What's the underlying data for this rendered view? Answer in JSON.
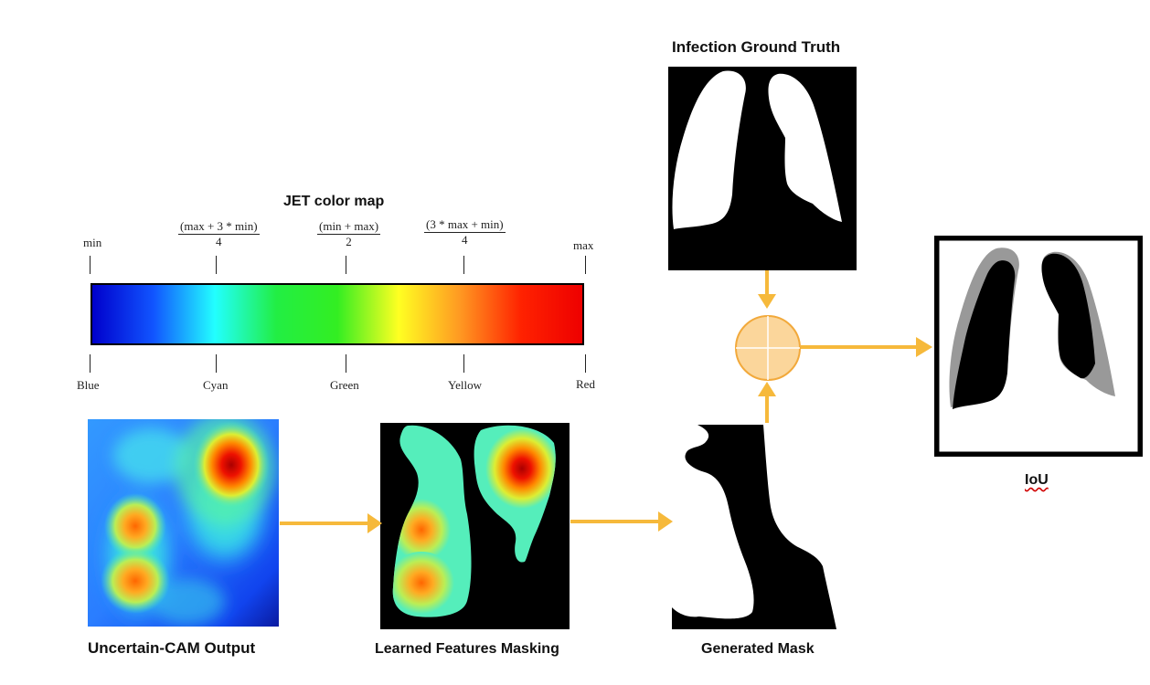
{
  "labels": {
    "ground_truth": "Infection Ground Truth",
    "iou": "IoU",
    "uncertain_cam": "Uncertain-CAM Output",
    "learned_masking": "Learned Features Masking",
    "generated_mask": "Generated Mask"
  },
  "colormap": {
    "title": "JET color map",
    "top_ticks": [
      {
        "text": "min"
      },
      {
        "num": "(max + 3 * min)",
        "den": "4"
      },
      {
        "num": "(min + max)",
        "den": "2"
      },
      {
        "num": "(3 * max + min)",
        "den": "4"
      },
      {
        "text": "max"
      }
    ],
    "bottom_labels": [
      "Blue",
      "Cyan",
      "Green",
      "Yellow",
      "Red"
    ],
    "colors": [
      "#0000cc",
      "#1155ff",
      "#22ffff",
      "#22ee44",
      "#33ee22",
      "#ffff22",
      "#ff9922",
      "#ff2200",
      "#ee0000"
    ]
  },
  "colors": {
    "arrow": "#f6b93b",
    "combine_fill": "#fbd69b",
    "combine_stroke": "#f2a93b"
  }
}
